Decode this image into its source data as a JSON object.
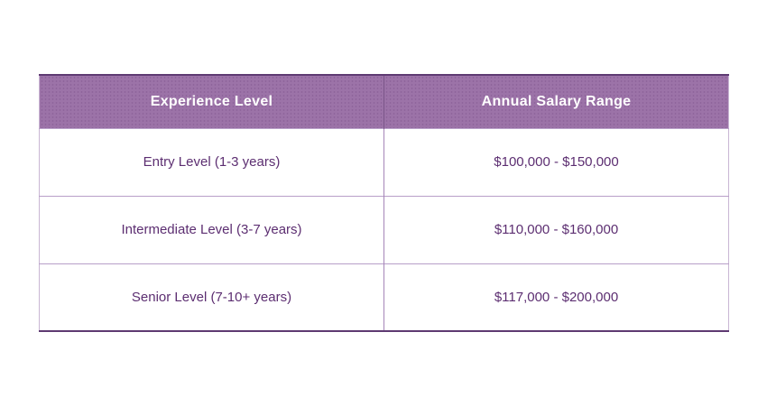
{
  "colors": {
    "header_background": "#9c73a8",
    "header_text": "#ffffff",
    "body_text": "#5c2e71",
    "outer_border_dark": "#5e3a72",
    "grid_line_light": "#b89fc8",
    "page_background": "#ffffff"
  },
  "chart_data": {
    "type": "table",
    "columns": [
      "Experience Level",
      "Annual Salary Range"
    ],
    "rows": [
      [
        "Entry Level (1-3 years)",
        "$100,000 - $150,000"
      ],
      [
        "Intermediate Level (3-7 years)",
        "$110,000 - $160,000"
      ],
      [
        "Senior Level (7-10+ years)",
        "$117,000 - $200,000"
      ]
    ]
  }
}
